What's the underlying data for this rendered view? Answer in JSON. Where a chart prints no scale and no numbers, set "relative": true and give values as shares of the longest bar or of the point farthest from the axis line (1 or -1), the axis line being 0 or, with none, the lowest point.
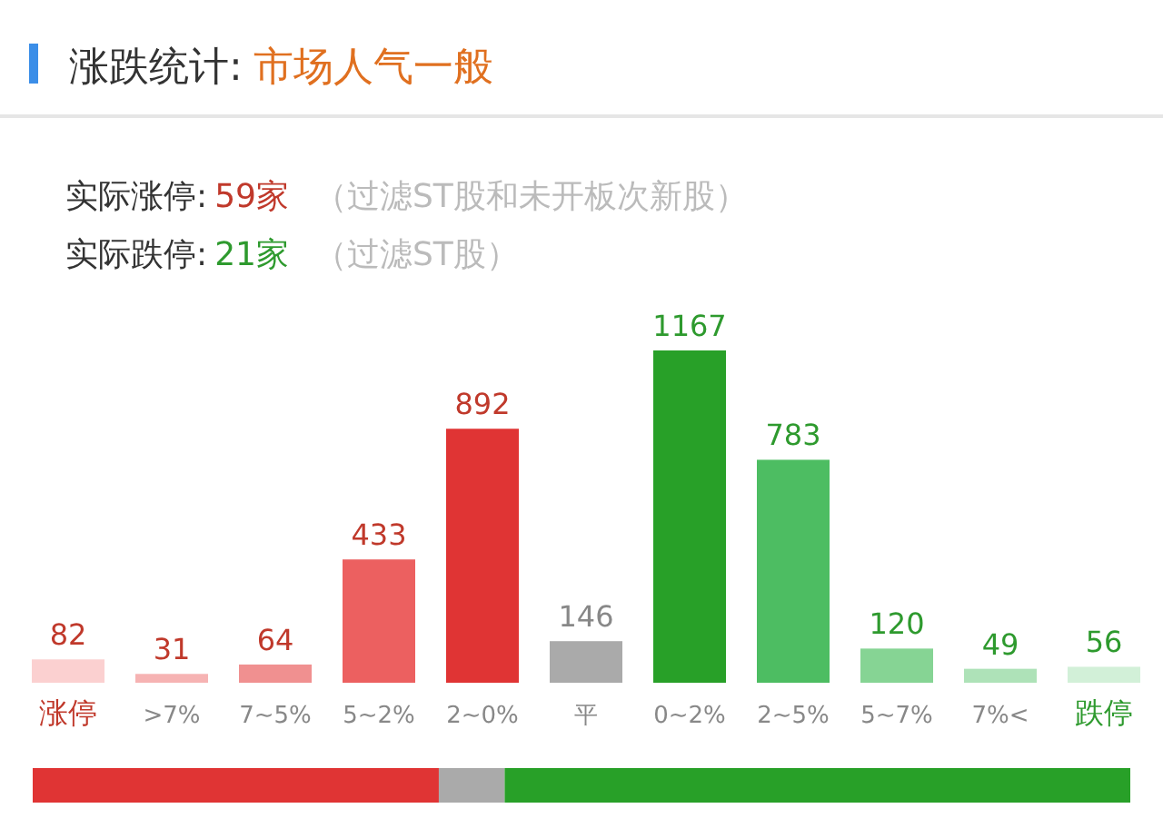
{
  "chart_data": [
    {
      "type": "bar",
      "title": "涨跌统计:",
      "subtitle": "市场人气一般",
      "annotations": [
        "实际涨停:",
        "59家",
        "（过滤ST股和未开板次新股）",
        "实际跌停:",
        "21家",
        "（过滤ST股）"
      ],
      "categories": [
        "涨停",
        ">7%",
        "7~5%",
        "5~2%",
        "2~0%",
        "平",
        "0~2%",
        "2~5%",
        "5~7%",
        "7%<",
        "跌停"
      ],
      "values": [
        82,
        31,
        64,
        433,
        892,
        146,
        1167,
        783,
        120,
        49,
        56
      ],
      "colors": [
        "#fbd0d0",
        "#f6b3b3",
        "#f09090",
        "#ec6060",
        "#e03434",
        "#aaaaaa",
        "#28a028",
        "#4dbd62",
        "#86d494",
        "#aee2b8",
        "#d2f0d8"
      ],
      "data_labels": true
    },
    {
      "type": "bar",
      "orientation": "horizontal",
      "stacked": true,
      "relative": true,
      "categories": [
        null
      ],
      "series": [
        {
          "color": "#e03434",
          "values": [
            0.37
          ]
        },
        {
          "color": "#aaaaaa",
          "values": [
            0.06
          ]
        },
        {
          "color": "#28a028",
          "values": [
            0.57
          ]
        }
      ]
    }
  ]
}
